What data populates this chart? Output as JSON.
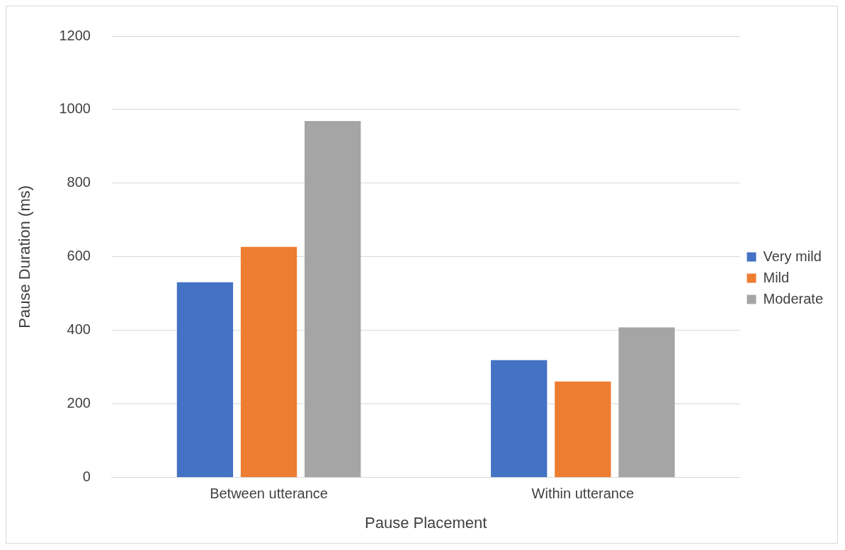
{
  "chart_data": {
    "type": "bar",
    "xlabel": "Pause Placement",
    "ylabel": "Pause Duration (ms)",
    "categories": [
      "Between utterance",
      "Within utterance"
    ],
    "series": [
      {
        "name": "Very mild",
        "color": "#4472c4",
        "values": [
          531,
          319
        ]
      },
      {
        "name": "Mild",
        "color": "#ed7d31",
        "values": [
          627,
          261
        ]
      },
      {
        "name": "Moderate",
        "color": "#a5a5a5",
        "values": [
          969,
          408
        ]
      }
    ],
    "ylim": [
      0,
      1200
    ],
    "yticks": [
      0,
      200,
      400,
      600,
      800,
      1000,
      1200
    ],
    "grid": "y",
    "legend": "right"
  }
}
